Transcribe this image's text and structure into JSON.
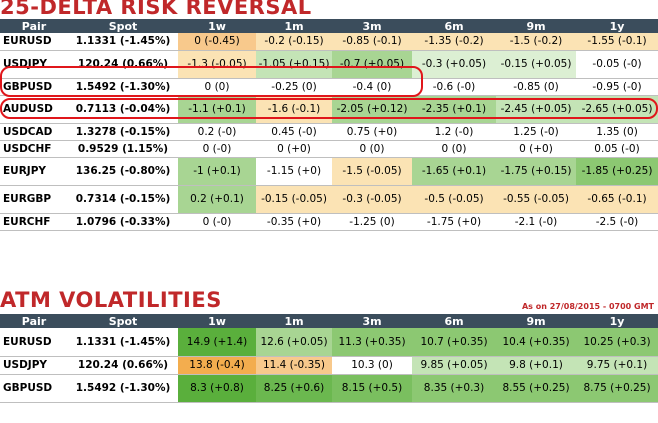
{
  "rr": {
    "title": "25-DELTA RISK REVERSAL",
    "headers": [
      "Pair",
      "Spot",
      "1w",
      "1m",
      "3m",
      "6m",
      "9m",
      "1y"
    ],
    "rows": [
      {
        "pair": "EURUSD",
        "spot": "1.1331 (-1.45%)",
        "cells": [
          {
            "t": "0 (-0.45)",
            "c": "#f8c98c"
          },
          {
            "t": "-0.2 (-0.15)",
            "c": "#fbe3b4"
          },
          {
            "t": "-0.85 (-0.1)",
            "c": "#fbe3b4"
          },
          {
            "t": "-1.35 (-0.2)",
            "c": "#fbe3b4"
          },
          {
            "t": "-1.5 (-0.2)",
            "c": "#fbe3b4"
          },
          {
            "t": "-1.55 (-0.1)",
            "c": "#fbe3b4"
          }
        ]
      },
      {
        "pair": "USDJPY",
        "spot": "120.24 (0.66%)",
        "cells": [
          {
            "t": "-1.3 (-0.05)",
            "c": "#fbe3b4"
          },
          {
            "t": "-1.05 (+0.15)",
            "c": "#c4e4b6"
          },
          {
            "t": "-0.7 (+0.05)",
            "c": "#a8d593"
          },
          {
            "t": "-0.3 (+0.05)",
            "c": "#dcefd3"
          },
          {
            "t": "-0.15 (+0.05)",
            "c": "#dcefd3"
          },
          {
            "t": "-0.05 (-0)",
            "c": "#ffffff"
          }
        ]
      },
      {
        "pair": "GBPUSD",
        "spot": "1.5492 (-1.30%)",
        "cells": [
          {
            "t": "0 (0)",
            "c": "#ffffff"
          },
          {
            "t": "-0.25 (0)",
            "c": "#ffffff"
          },
          {
            "t": "-0.4 (0)",
            "c": "#ffffff"
          },
          {
            "t": "-0.6 (-0)",
            "c": "#ffffff"
          },
          {
            "t": "-0.85 (0)",
            "c": "#ffffff"
          },
          {
            "t": "-0.95 (-0)",
            "c": "#ffffff"
          }
        ]
      },
      {
        "pair": "AUDUSD",
        "spot": "0.7113 (-0.04%)",
        "cells": [
          {
            "t": "-1.1 (+0.1)",
            "c": "#a8d593"
          },
          {
            "t": "-1.6 (-0.1)",
            "c": "#fbe3b4"
          },
          {
            "t": "-2.05 (+0.12)",
            "c": "#a8d593"
          },
          {
            "t": "-2.35 (+0.1)",
            "c": "#a8d593"
          },
          {
            "t": "-2.45 (+0.05)",
            "c": "#c4e4b6"
          },
          {
            "t": "-2.65 (+0.05)",
            "c": "#c4e4b6"
          }
        ]
      },
      {
        "pair": "USDCAD",
        "spot": "1.3278 (-0.15%)",
        "cells": [
          {
            "t": "0.2 (-0)",
            "c": "#ffffff"
          },
          {
            "t": "0.45 (-0)",
            "c": "#ffffff"
          },
          {
            "t": "0.75 (+0)",
            "c": "#ffffff"
          },
          {
            "t": "1.2 (-0)",
            "c": "#ffffff"
          },
          {
            "t": "1.25 (-0)",
            "c": "#ffffff"
          },
          {
            "t": "1.35 (0)",
            "c": "#ffffff"
          }
        ]
      },
      {
        "pair": "USDCHF",
        "spot": "0.9529 (1.15%)",
        "cells": [
          {
            "t": "0 (-0)",
            "c": "#ffffff"
          },
          {
            "t": "0 (+0)",
            "c": "#ffffff"
          },
          {
            "t": "0 (0)",
            "c": "#ffffff"
          },
          {
            "t": "0 (0)",
            "c": "#ffffff"
          },
          {
            "t": "0 (+0)",
            "c": "#ffffff"
          },
          {
            "t": "0.05 (-0)",
            "c": "#ffffff"
          }
        ]
      },
      {
        "pair": "EURJPY",
        "spot": "136.25 (-0.80%)",
        "cells": [
          {
            "t": "-1 (+0.1)",
            "c": "#a8d593"
          },
          {
            "t": "-1.15 (+0)",
            "c": "#ffffff"
          },
          {
            "t": "-1.5 (-0.05)",
            "c": "#fbe3b4"
          },
          {
            "t": "-1.65 (+0.1)",
            "c": "#a8d593"
          },
          {
            "t": "-1.75 (+0.15)",
            "c": "#a8d593"
          },
          {
            "t": "-1.85 (+0.25)",
            "c": "#8cc872"
          }
        ]
      },
      {
        "pair": "EURGBP",
        "spot": "0.7314 (-0.15%)",
        "cells": [
          {
            "t": "0.2 (+0.1)",
            "c": "#a8d593"
          },
          {
            "t": "-0.15 (-0.05)",
            "c": "#fbe3b4"
          },
          {
            "t": "-0.3 (-0.05)",
            "c": "#fbe3b4"
          },
          {
            "t": "-0.5 (-0.05)",
            "c": "#fbe3b4"
          },
          {
            "t": "-0.55 (-0.05)",
            "c": "#fbe3b4"
          },
          {
            "t": "-0.65 (-0.1)",
            "c": "#fbe3b4"
          }
        ]
      },
      {
        "pair": "EURCHF",
        "spot": "1.0796 (-0.33%)",
        "cells": [
          {
            "t": "0 (-0)",
            "c": "#ffffff"
          },
          {
            "t": "-0.35 (+0)",
            "c": "#ffffff"
          },
          {
            "t": "-1.25 (0)",
            "c": "#ffffff"
          },
          {
            "t": "-1.75 (+0)",
            "c": "#ffffff"
          },
          {
            "t": "-2.1 (-0)",
            "c": "#ffffff"
          },
          {
            "t": "-2.5 (-0)",
            "c": "#ffffff"
          }
        ]
      }
    ]
  },
  "atm": {
    "title": "ATM VOLATILITIES",
    "as_of": "As on 27/08/2015 - 0700 GMT",
    "headers": [
      "Pair",
      "Spot",
      "1w",
      "1m",
      "3m",
      "6m",
      "9m",
      "1y"
    ],
    "rows": [
      {
        "pair": "EURUSD",
        "spot": "1.1331 (-1.45%)",
        "cells": [
          {
            "t": "14.9 (+1.4)",
            "c": "#5aaf3c"
          },
          {
            "t": "12.6 (+0.05)",
            "c": "#a8d593"
          },
          {
            "t": "11.3 (+0.35)",
            "c": "#8cc872"
          },
          {
            "t": "10.7 (+0.35)",
            "c": "#8cc872"
          },
          {
            "t": "10.4 (+0.35)",
            "c": "#8cc872"
          },
          {
            "t": "10.25 (+0.3)",
            "c": "#8cc872"
          }
        ]
      },
      {
        "pair": "USDJPY",
        "spot": "120.24 (0.66%)",
        "cells": [
          {
            "t": "13.8 (-0.4)",
            "c": "#f3ad4e"
          },
          {
            "t": "11.4 (-0.35)",
            "c": "#f8c98c"
          },
          {
            "t": "10.3 (0)",
            "c": "#ffffff"
          },
          {
            "t": "9.85 (+0.05)",
            "c": "#c4e4b6"
          },
          {
            "t": "9.8 (+0.1)",
            "c": "#c4e4b6"
          },
          {
            "t": "9.75 (+0.1)",
            "c": "#c4e4b6"
          }
        ]
      },
      {
        "pair": "GBPUSD",
        "spot": "1.5492 (-1.30%)",
        "cells": [
          {
            "t": "8.3 (+0.8)",
            "c": "#5aaf3c"
          },
          {
            "t": "8.25 (+0.6)",
            "c": "#6bb84f"
          },
          {
            "t": "8.15 (+0.5)",
            "c": "#7abf5f"
          },
          {
            "t": "8.35 (+0.3)",
            "c": "#8cc872"
          },
          {
            "t": "8.55 (+0.25)",
            "c": "#8cc872"
          },
          {
            "t": "8.75 (+0.25)",
            "c": "#8cc872"
          }
        ]
      }
    ]
  }
}
